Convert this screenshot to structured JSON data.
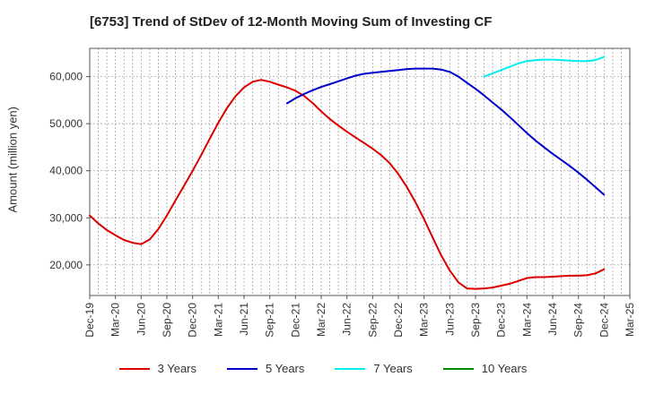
{
  "chart_data": {
    "type": "line",
    "title": "[6753]  Trend of StDev of 12-Month Moving Sum of Investing CF",
    "ylabel": "Amount (million yen)",
    "xlabel": "",
    "ylim": [
      13500,
      66000
    ],
    "yticks": [
      20000,
      30000,
      40000,
      50000,
      60000
    ],
    "ytick_labels": [
      "20,000",
      "30,000",
      "40,000",
      "50,000",
      "60,000"
    ],
    "xticks": [
      "Dec-19",
      "Mar-20",
      "Jun-20",
      "Sep-20",
      "Dec-20",
      "Mar-21",
      "Jun-21",
      "Sep-21",
      "Dec-21",
      "Mar-22",
      "Jun-22",
      "Sep-22",
      "Dec-22",
      "Mar-23",
      "Jun-23",
      "Sep-23",
      "Dec-23",
      "Mar-24",
      "Jun-24",
      "Sep-24",
      "Dec-24",
      "Mar-25"
    ],
    "grid": true,
    "legend_position": "bottom",
    "series": [
      {
        "name": "3 Years",
        "color": "#dd0000",
        "x": [
          "2019-12",
          "2020-01",
          "2020-02",
          "2020-03",
          "2020-04",
          "2020-05",
          "2020-06",
          "2020-07",
          "2020-08",
          "2020-09",
          "2020-10",
          "2020-11",
          "2020-12",
          "2021-01",
          "2021-02",
          "2021-03",
          "2021-04",
          "2021-05",
          "2021-06",
          "2021-07",
          "2021-08",
          "2021-09",
          "2021-10",
          "2021-11",
          "2021-12",
          "2022-01",
          "2022-02",
          "2022-03",
          "2022-04",
          "2022-05",
          "2022-06",
          "2022-07",
          "2022-08",
          "2022-09",
          "2022-10",
          "2022-11",
          "2022-12",
          "2023-01",
          "2023-02",
          "2023-03",
          "2023-04",
          "2023-05",
          "2023-06",
          "2023-07",
          "2023-08",
          "2023-09",
          "2023-10",
          "2023-11",
          "2023-12",
          "2024-01",
          "2024-02",
          "2024-03",
          "2024-04",
          "2024-05",
          "2024-06",
          "2024-07",
          "2024-08",
          "2024-09",
          "2024-10",
          "2024-11",
          "2024-12"
        ],
        "values": [
          30500,
          28800,
          27400,
          26300,
          25300,
          24700,
          24400,
          25400,
          27600,
          30500,
          33700,
          36800,
          40000,
          43300,
          46800,
          50200,
          53300,
          55800,
          57700,
          58900,
          59300,
          58900,
          58300,
          57700,
          57000,
          55900,
          54400,
          52600,
          51000,
          49600,
          48300,
          47100,
          45900,
          44700,
          43300,
          41600,
          39300,
          36500,
          33300,
          29700,
          25800,
          22000,
          18800,
          16300,
          15000,
          14900,
          15000,
          15200,
          15600,
          16000,
          16600,
          17200,
          17400,
          17400,
          17500,
          17600,
          17700,
          17700,
          17800,
          18200,
          19100
        ]
      },
      {
        "name": "5 Years",
        "color": "#0000cc",
        "x": [
          "2021-11",
          "2021-12",
          "2022-01",
          "2022-02",
          "2022-03",
          "2022-04",
          "2022-05",
          "2022-06",
          "2022-07",
          "2022-08",
          "2022-09",
          "2022-10",
          "2022-11",
          "2022-12",
          "2023-01",
          "2023-02",
          "2023-03",
          "2023-04",
          "2023-05",
          "2023-06",
          "2023-07",
          "2023-08",
          "2023-09",
          "2023-10",
          "2023-11",
          "2023-12",
          "2024-01",
          "2024-02",
          "2024-03",
          "2024-04",
          "2024-05",
          "2024-06",
          "2024-07",
          "2024-08",
          "2024-09",
          "2024-10",
          "2024-11",
          "2024-12"
        ],
        "values": [
          54300,
          55400,
          56300,
          57100,
          57800,
          58400,
          59000,
          59600,
          60200,
          60600,
          60800,
          61000,
          61200,
          61400,
          61600,
          61700,
          61700,
          61700,
          61500,
          61000,
          60000,
          58700,
          57400,
          56000,
          54500,
          53000,
          51400,
          49700,
          48000,
          46400,
          45000,
          43600,
          42300,
          41000,
          39600,
          38100,
          36500,
          34900
        ]
      },
      {
        "name": "7 Years",
        "color": "#00eeee",
        "x": [
          "2023-10",
          "2023-11",
          "2023-12",
          "2024-01",
          "2024-02",
          "2024-03",
          "2024-04",
          "2024-05",
          "2024-06",
          "2024-07",
          "2024-08",
          "2024-09",
          "2024-10",
          "2024-11",
          "2024-12"
        ],
        "values": [
          60000,
          60700,
          61400,
          62100,
          62800,
          63300,
          63500,
          63600,
          63600,
          63500,
          63400,
          63300,
          63300,
          63500,
          64200
        ]
      },
      {
        "name": "10 Years",
        "color": "#008800",
        "x": [],
        "values": []
      }
    ]
  }
}
